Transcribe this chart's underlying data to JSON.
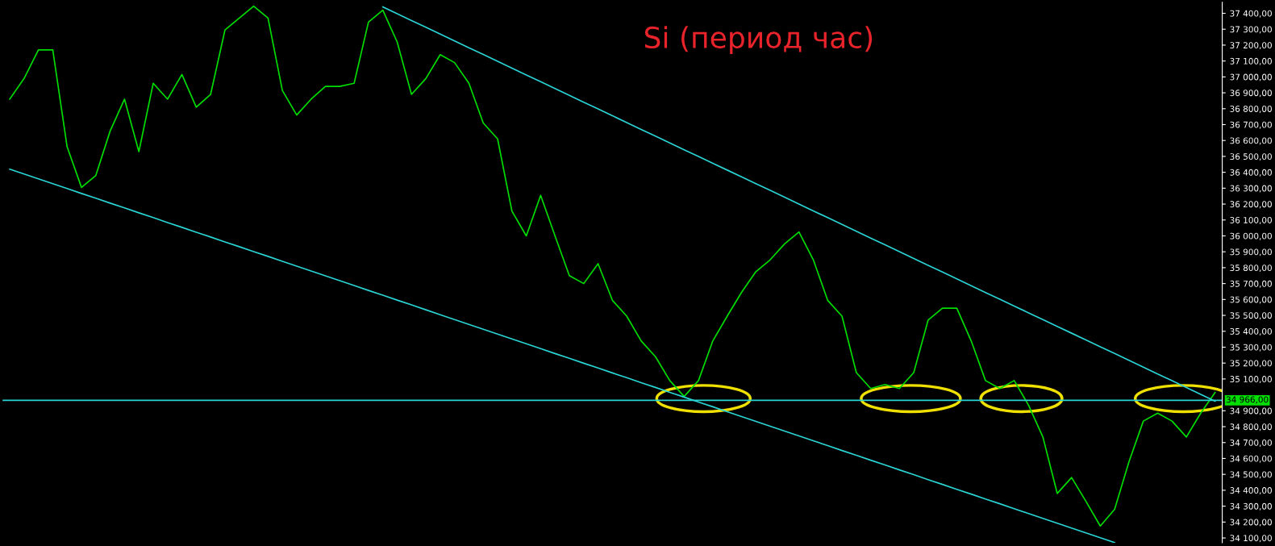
{
  "chart_data": {
    "type": "line",
    "title": "Si (период час)",
    "tick_labels": "y",
    "grid": false,
    "legend": false,
    "line_style": "solid",
    "marker": "none",
    "categories": [
      null,
      null,
      null,
      null,
      null,
      null,
      null,
      null,
      null,
      null,
      null,
      null,
      null,
      null,
      null,
      null,
      null,
      null,
      null,
      null,
      null,
      null,
      null,
      null,
      null,
      null,
      null,
      null,
      null,
      null,
      null,
      null,
      null,
      null,
      null,
      null,
      null,
      null,
      null,
      null,
      null,
      null,
      null,
      null,
      null,
      null,
      null,
      null,
      null,
      null,
      null,
      null,
      null,
      null,
      null,
      null,
      null,
      null,
      null,
      null,
      null,
      null,
      null,
      null,
      null,
      null,
      null,
      null,
      null,
      null,
      null,
      null,
      null,
      null,
      null,
      null,
      null,
      null,
      null,
      null,
      null,
      null,
      null,
      null,
      null
    ],
    "ylim": [
      34070,
      37470
    ],
    "yticks": [
      {
        "value": 34100,
        "label": "34 100,00"
      },
      {
        "value": 34200,
        "label": "34 200,00"
      },
      {
        "value": 34300,
        "label": "34 300,00"
      },
      {
        "value": 34400,
        "label": "34 400,00"
      },
      {
        "value": 34500,
        "label": "34 500,00"
      },
      {
        "value": 34600,
        "label": "34 600,00"
      },
      {
        "value": 34700,
        "label": "34 700,00"
      },
      {
        "value": 34800,
        "label": "34 800,00"
      },
      {
        "value": 34900,
        "label": "34 900,00"
      },
      {
        "value": 35100,
        "label": "35 100,00"
      },
      {
        "value": 35200,
        "label": "35 200,00"
      },
      {
        "value": 35300,
        "label": "35 300,00"
      },
      {
        "value": 35400,
        "label": "35 400,00"
      },
      {
        "value": 35500,
        "label": "35 500,00"
      },
      {
        "value": 35600,
        "label": "35 600,00"
      },
      {
        "value": 35700,
        "label": "35 700,00"
      },
      {
        "value": 35800,
        "label": "35 800,00"
      },
      {
        "value": 35900,
        "label": "35 900,00"
      },
      {
        "value": 36000,
        "label": "36 000,00"
      },
      {
        "value": 36100,
        "label": "36 100,00"
      },
      {
        "value": 36200,
        "label": "36 200,00"
      },
      {
        "value": 36300,
        "label": "36 300,00"
      },
      {
        "value": 36400,
        "label": "36 400,00"
      },
      {
        "value": 36500,
        "label": "36 500,00"
      },
      {
        "value": 36600,
        "label": "36 600,00"
      },
      {
        "value": 36700,
        "label": "36 700,00"
      },
      {
        "value": 36800,
        "label": "36 800,00"
      },
      {
        "value": 36900,
        "label": "36 900,00"
      },
      {
        "value": 37000,
        "label": "37 000,00"
      },
      {
        "value": 37100,
        "label": "37 100,00"
      },
      {
        "value": 37200,
        "label": "37 200,00"
      },
      {
        "value": 37300,
        "label": "37 300,00"
      },
      {
        "value": 37400,
        "label": "37 400,00"
      }
    ],
    "series": [
      {
        "color": "#00dd00",
        "values": [
          36860,
          36990,
          37170,
          37170,
          36560,
          36305,
          36380,
          36660,
          36860,
          36530,
          36960,
          36860,
          37015,
          36810,
          36890,
          37295,
          37370,
          37445,
          37370,
          36915,
          36760,
          36860,
          36940,
          36940,
          36960,
          37345,
          37420,
          37220,
          36890,
          36990,
          37140,
          37090,
          36960,
          36710,
          36610,
          36155,
          36000,
          36255,
          36000,
          35750,
          35700,
          35825,
          35595,
          35495,
          35340,
          35240,
          35090,
          34990,
          35090,
          35340,
          35495,
          35645,
          35775,
          35850,
          35950,
          36025,
          35850,
          35595,
          35495,
          35140,
          35040,
          35065,
          35040,
          35140,
          35470,
          35545,
          35545,
          35340,
          35090,
          35040,
          35090,
          34935,
          34735,
          34380,
          34480,
          34330,
          34175,
          34280,
          34580,
          34835,
          34885,
          34835,
          34735,
          34885,
          35015
        ]
      },
      {
        "color": "#2ad4d4",
        "values": [
          null,
          null,
          null,
          null,
          null,
          null,
          null,
          null,
          null,
          null,
          null,
          null,
          null,
          null,
          null,
          null,
          null,
          null,
          null,
          null,
          null,
          null,
          null,
          null,
          null,
          null,
          37440,
          37397,
          37354,
          37312,
          37269,
          37226,
          37183,
          37141,
          37098,
          37055,
          37012,
          36970,
          36927,
          36884,
          36841,
          36799,
          36756,
          36713,
          36670,
          36628,
          36585,
          36542,
          36499,
          36457,
          36414,
          36371,
          36328,
          36286,
          36243,
          36200,
          36157,
          36115,
          36072,
          36029,
          35986,
          35944,
          35901,
          35858,
          35815,
          35773,
          35730,
          35687,
          35644,
          35602,
          35559,
          35516,
          35473,
          35431,
          35388,
          35345,
          35302,
          35260,
          35217,
          35174,
          35131,
          35089,
          35046,
          35003,
          34960
        ]
      },
      {
        "color": "#2ad4d4",
        "values": [
          36420,
          36389,
          36359,
          36328,
          36298,
          36267,
          36237,
          36206,
          36176,
          36145,
          36115,
          36084,
          36054,
          36023,
          35993,
          35962,
          35932,
          35901,
          35871,
          35840,
          35810,
          35779,
          35749,
          35718,
          35688,
          35657,
          35627,
          35596,
          35566,
          35535,
          35504,
          35474,
          35443,
          35413,
          35382,
          35352,
          35321,
          35291,
          35260,
          35230,
          35199,
          35169,
          35138,
          35108,
          35077,
          35047,
          35016,
          34986,
          34955,
          34925,
          34894,
          34864,
          34833,
          34803,
          34772,
          34742,
          34711,
          34681,
          34650,
          34620,
          34589,
          34559,
          34528,
          34498,
          34467,
          34437,
          34406,
          34376,
          34345,
          34315,
          34284,
          34254,
          34223,
          34193,
          34162,
          34132,
          34101,
          34071,
          null,
          null,
          null,
          null,
          null,
          null,
          null
        ]
      }
    ],
    "ref_lines": [
      {
        "axis": "y",
        "value": 34966,
        "label": "34 966,00",
        "color": "#2ad4d4"
      }
    ]
  }
}
